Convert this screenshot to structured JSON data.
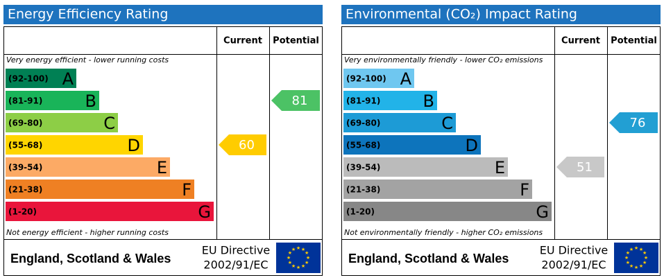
{
  "chart_data": [
    {
      "type": "epc",
      "title": "Energy Efficiency Rating",
      "top_note": "Very energy efficient - lower running costs",
      "bottom_note": "Not energy efficient - higher running costs",
      "bands": [
        {
          "range": "(92-100)",
          "letter": "A",
          "color": "#008054"
        },
        {
          "range": "(81-91)",
          "letter": "B",
          "color": "#19b459"
        },
        {
          "range": "(69-80)",
          "letter": "C",
          "color": "#8dce46"
        },
        {
          "range": "(55-68)",
          "letter": "D",
          "color": "#ffd500"
        },
        {
          "range": "(39-54)",
          "letter": "E",
          "color": "#fcaa65"
        },
        {
          "range": "(21-38)",
          "letter": "F",
          "color": "#ef8023"
        },
        {
          "range": "(1-20)",
          "letter": "G",
          "color": "#e9153b"
        }
      ],
      "series": [
        {
          "name": "Current",
          "values": [
            60
          ],
          "color": "#ffcc00"
        },
        {
          "name": "Potential",
          "values": [
            81
          ],
          "color": "#4cc265"
        }
      ],
      "footer": {
        "region": "England, Scotland & Wales",
        "directive": "EU Directive",
        "code": "2002/91/EC"
      }
    },
    {
      "type": "epc",
      "title": "Environmental (CO₂) Impact Rating",
      "top_note": "Very environmentally friendly - lower CO₂ emissions",
      "bottom_note": "Not environmentally friendly - higher CO₂ emissions",
      "bands": [
        {
          "range": "(92-100)",
          "letter": "A",
          "color": "#6fc7f0"
        },
        {
          "range": "(81-91)",
          "letter": "B",
          "color": "#22b3e8"
        },
        {
          "range": "(69-80)",
          "letter": "C",
          "color": "#1d9bd6"
        },
        {
          "range": "(55-68)",
          "letter": "D",
          "color": "#0d74bc"
        },
        {
          "range": "(39-54)",
          "letter": "E",
          "color": "#bbbbbb"
        },
        {
          "range": "(21-38)",
          "letter": "F",
          "color": "#a3a3a3"
        },
        {
          "range": "(1-20)",
          "letter": "G",
          "color": "#878787"
        }
      ],
      "series": [
        {
          "name": "Current",
          "values": [
            51
          ],
          "color": "#c8c8c8"
        },
        {
          "name": "Potential",
          "values": [
            76
          ],
          "color": "#229fd3"
        }
      ],
      "footer": {
        "region": "England, Scotland & Wales",
        "directive": "EU Directive",
        "code": "2002/91/EC"
      }
    }
  ]
}
